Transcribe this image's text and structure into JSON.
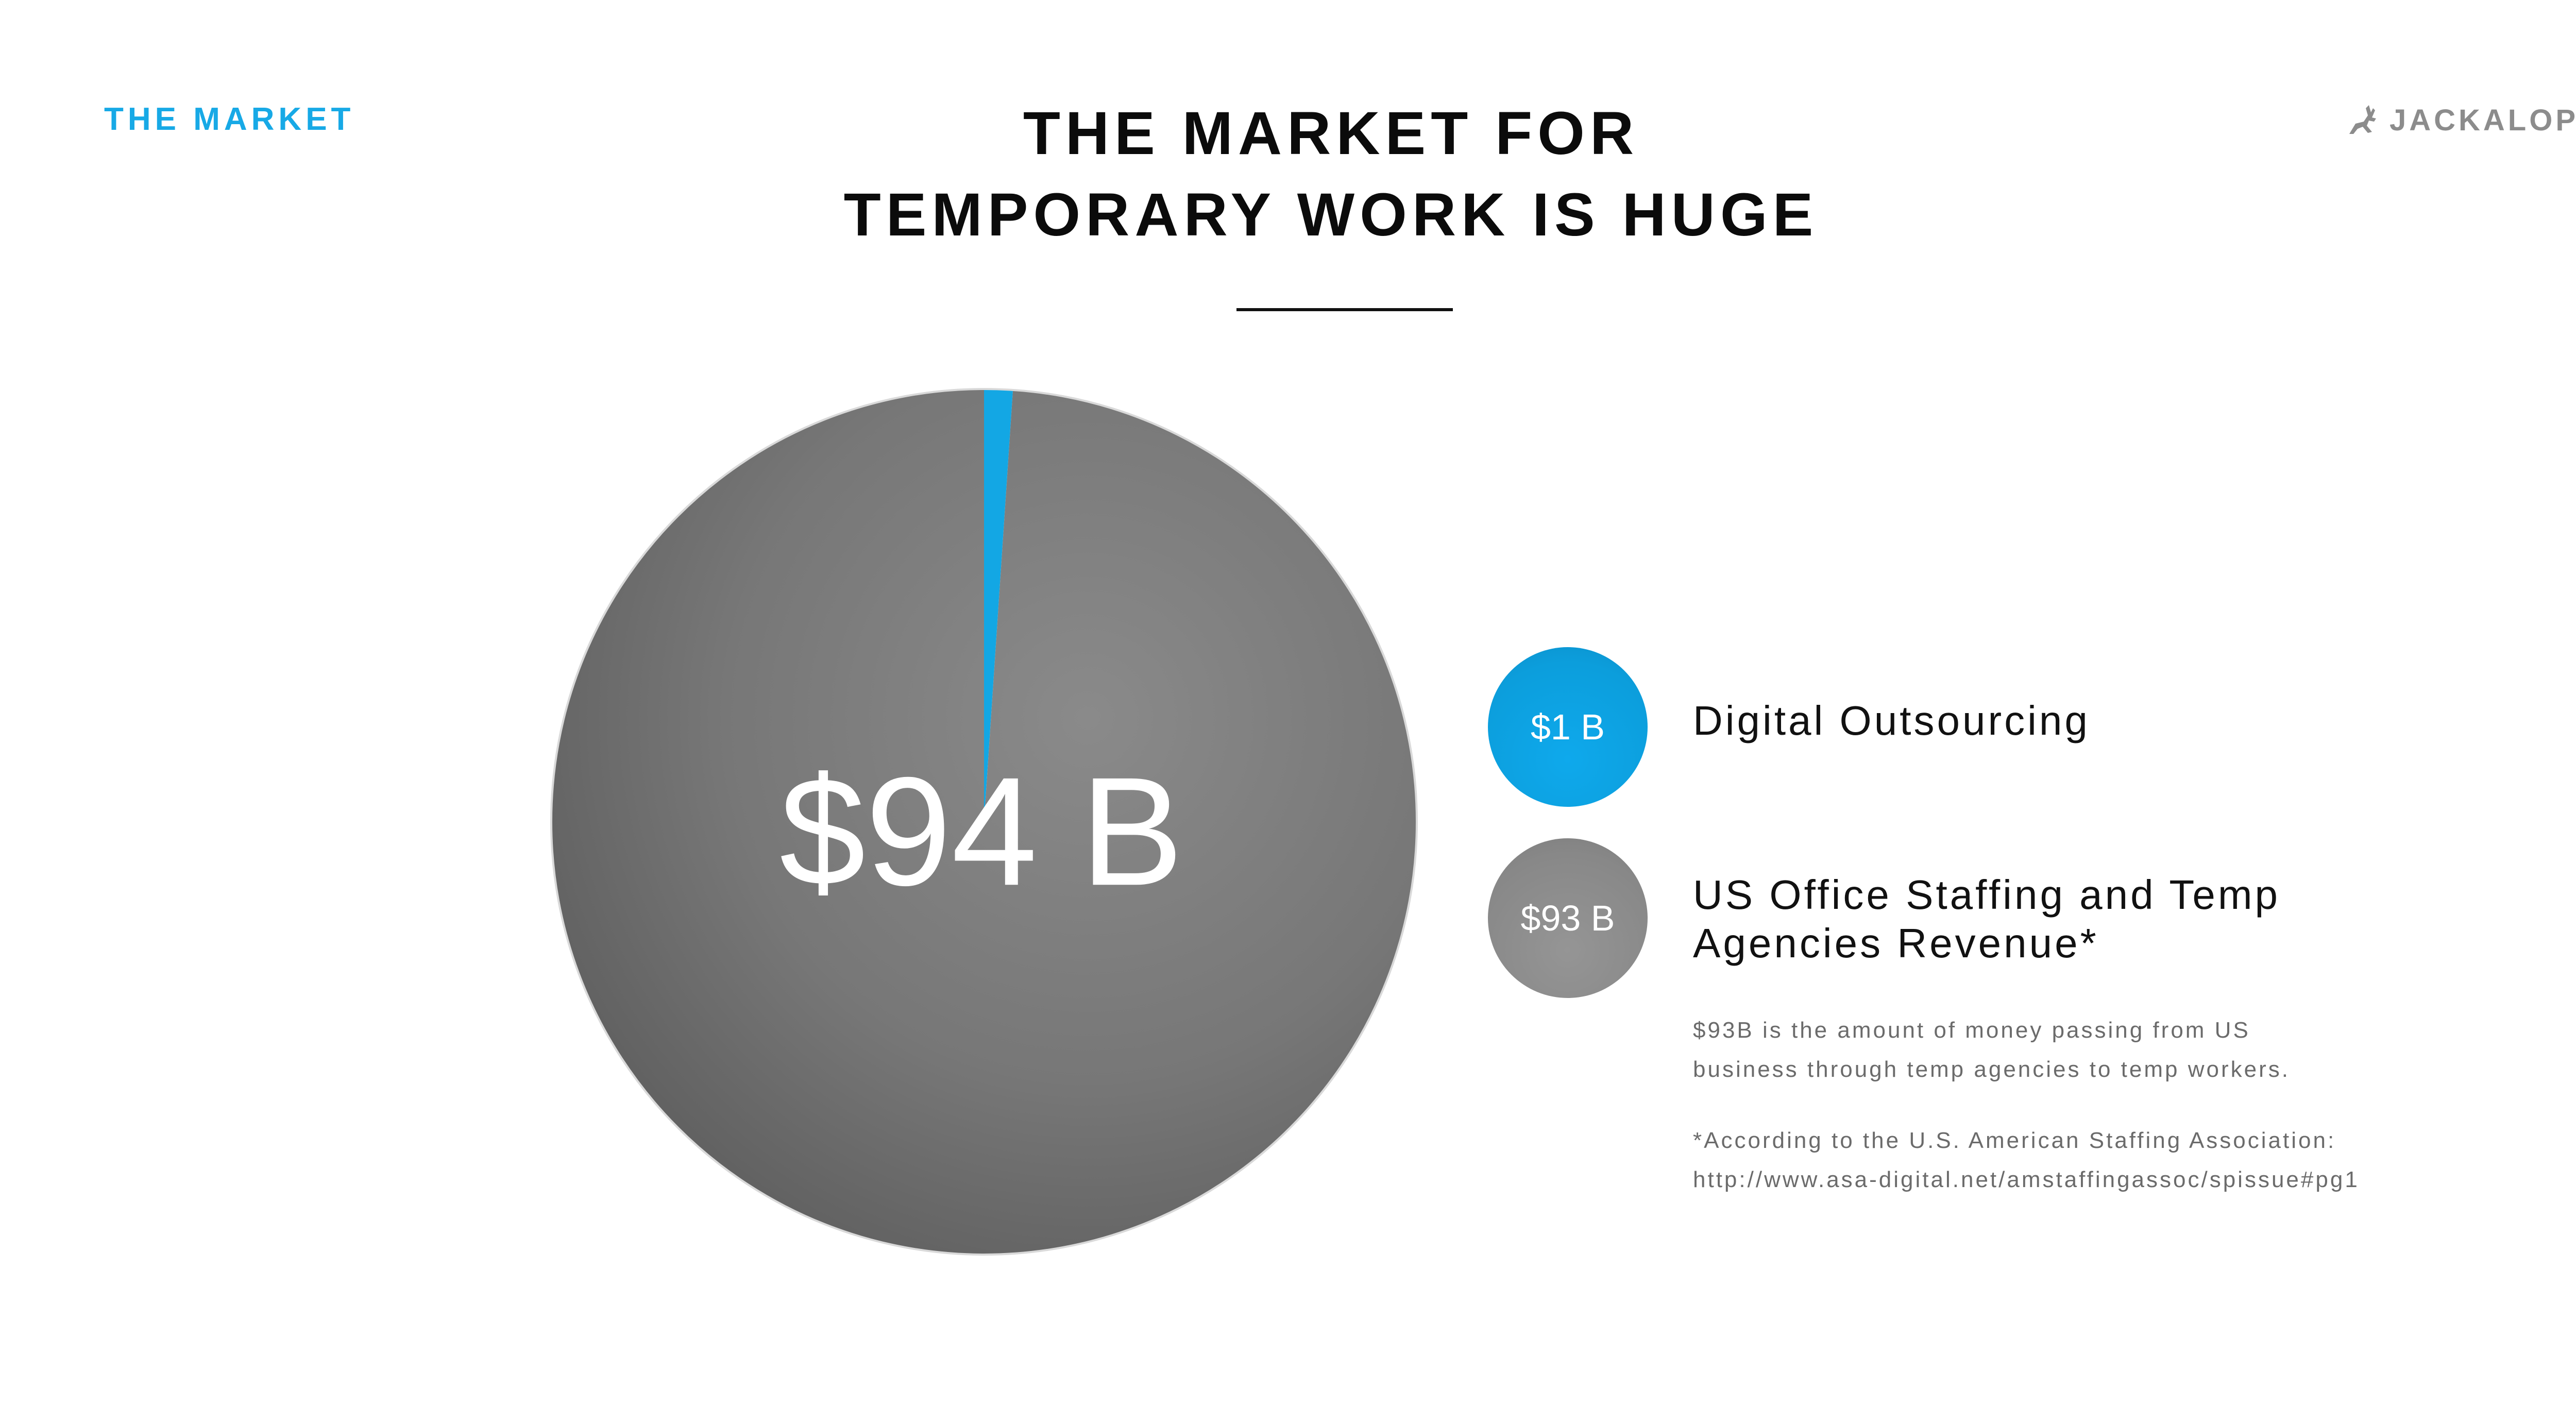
{
  "header": {
    "section_label": "THE MARKET",
    "title_line_1": "THE MARKET FOR",
    "title_line_2": "TEMPORARY WORK IS HUGE",
    "brand": "JACKALOPE"
  },
  "chart_data": {
    "type": "pie",
    "center_label": "$94 B",
    "slices": [
      {
        "label": "Digital Outsourcing",
        "value": 1,
        "value_label": "$1 B",
        "color": "#13a7e4"
      },
      {
        "label": "US Office Staffing and Temp Agencies Revenue*",
        "value": 93,
        "value_label": "$93 B",
        "color": "#7a7a7a"
      }
    ]
  },
  "legend": {
    "items": [
      {
        "value_label": "$1 B",
        "label": "Digital Outsourcing"
      },
      {
        "value_label": "$93 B",
        "label_line_1": "US Office Staffing and Temp",
        "label_line_2": "Agencies Revenue*"
      }
    ]
  },
  "notes": {
    "line_1": "$93B is the amount of money passing from US",
    "line_2": "business through temp agencies to temp workers.",
    "line_3": "*According to the U.S. American Staffing Association:",
    "line_4": "http://www.asa-digital.net/amstaffingassoc/spissue#pg1"
  },
  "colors": {
    "accent": "#13a7e4",
    "gray": "#7a7a7a"
  }
}
